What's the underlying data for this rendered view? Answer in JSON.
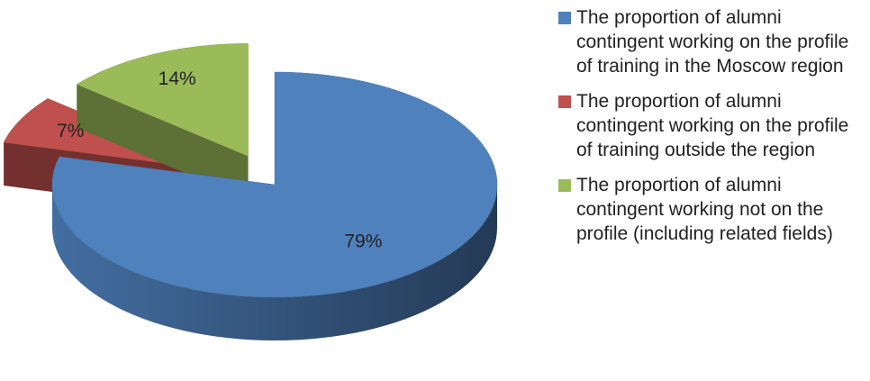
{
  "chart_data": {
    "type": "pie",
    "categories": [
      "The proportion of alumni contingent working on the profile of training in the Moscow region",
      "The proportion of alumni contingent working on the profile of training outside the region",
      "The proportion of alumni contingent working not on the profile (including related fields)"
    ],
    "values": [
      79,
      7,
      14
    ],
    "value_labels": [
      "79%",
      "7%",
      "14%"
    ],
    "colors": [
      "#4f81bd",
      "#c0504d",
      "#9bbb59"
    ],
    "legend": "right"
  }
}
